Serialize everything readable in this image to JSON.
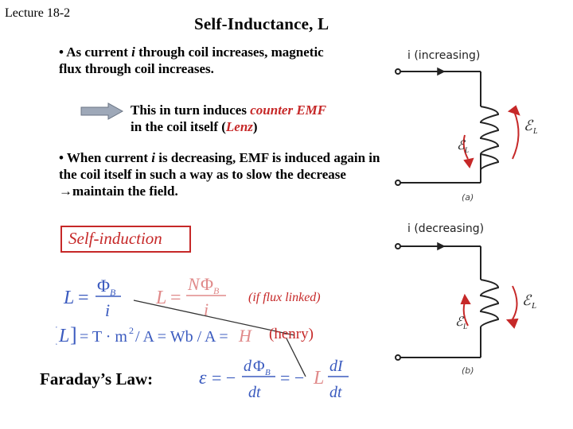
{
  "lecture": "Lecture 18-2",
  "title": "Self-Inductance,  L",
  "bullet1": {
    "prefix": "• As current ",
    "var": "i",
    "rest": " through coil increases, magnetic flux through coil increases."
  },
  "induces": {
    "text1": "This in turn induces ",
    "highlight": "counter EMF",
    "text2": "in the coil itself  (",
    "lenz": "Lenz",
    "text3": ")"
  },
  "bullet2": {
    "prefix": "• When current ",
    "var": "i",
    "rest1": " is decreasing, EMF is induced again in the coil itself in such a way as to slow the decrease ",
    "arrow": "→",
    "rest2": "maintain the field."
  },
  "self_induction": "Self-induction",
  "flux_note": "(if flux linked)",
  "henry": "(henry)",
  "faraday": "Faraday’s Law:",
  "figure": {
    "top_label": "i (increasing)",
    "bottom_label": "i (decreasing)",
    "caption_a": "(a)",
    "caption_b": "(b)"
  },
  "colors": {
    "accent_red": "#c62828",
    "equation_blue": "#3b5bbf"
  }
}
